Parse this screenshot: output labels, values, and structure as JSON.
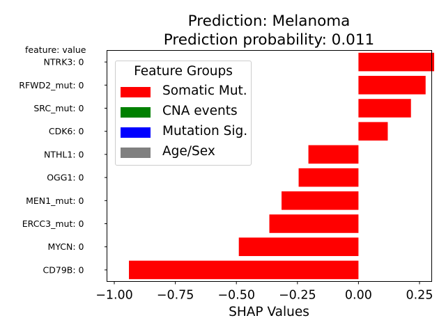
{
  "chart_data": {
    "type": "bar",
    "orientation": "horizontal",
    "title_lines": [
      "Prediction: Melanoma",
      "Prediction probability: 0.011"
    ],
    "y_header": "feature: value",
    "xlabel": "SHAP Values",
    "xlim": [
      -1.03,
      0.3
    ],
    "xticks": [
      -1.0,
      -0.75,
      -0.5,
      -0.25,
      0.0,
      0.25
    ],
    "xtick_labels": [
      "−1.00",
      "−0.75",
      "−0.50",
      "−0.25",
      "0.00",
      "0.25"
    ],
    "categories": [
      "NTRK3: 0",
      "RFWD2_mut: 0",
      "SRC_mut: 0",
      "CDK6: 0",
      "NTHL1: 0",
      "OGG1: 0",
      "MEN1_mut: 0",
      "ERCC3_mut: 0",
      "MYCN: 0",
      "CD79B: 0"
    ],
    "values": [
      0.31,
      0.275,
      0.215,
      0.12,
      -0.205,
      -0.245,
      -0.315,
      -0.365,
      -0.49,
      -0.94
    ],
    "bar_color": "#ff0000",
    "grid": false,
    "legend": {
      "title": "Feature Groups",
      "placement": "top-left",
      "items": [
        {
          "label": "Somatic Mut.",
          "color": "#ff0000"
        },
        {
          "label": "CNA events",
          "color": "#008000"
        },
        {
          "label": "Mutation Sig.",
          "color": "#0000ff"
        },
        {
          "label": "Age/Sex",
          "color": "#808080"
        }
      ]
    }
  }
}
